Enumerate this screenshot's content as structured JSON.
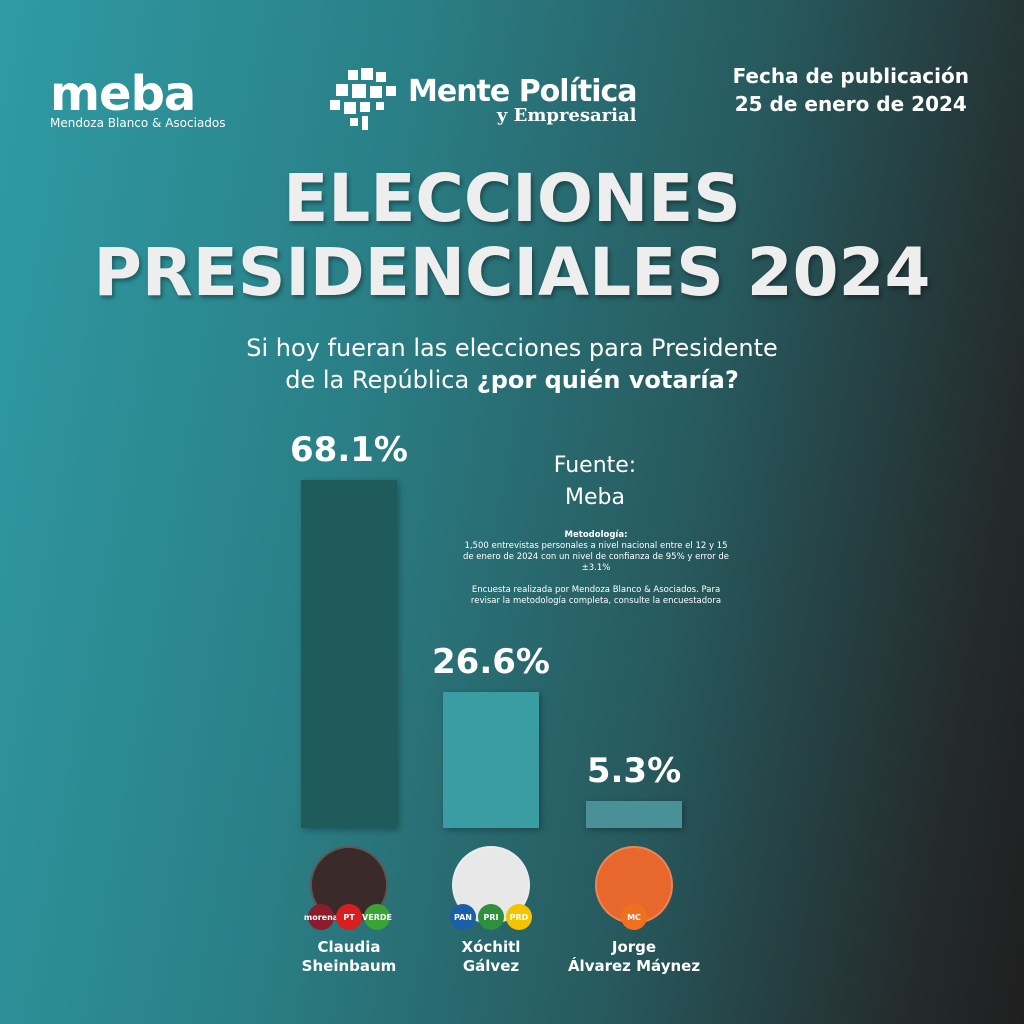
{
  "header": {
    "meba_logo": "meba",
    "meba_subtitle": "Mendoza Blanco & Asociados",
    "mp_logo_line1": "Mente Política",
    "mp_logo_line2": "y Empresarial",
    "fecha_label": "Fecha de publicación",
    "fecha": "25 de enero de 2024"
  },
  "title_line1": "ELECCIONES",
  "title_line2": "PRESIDENCIALES 2024",
  "question_line1": "Si hoy fueran las elecciones para Presidente",
  "question_line2a": "de la República ",
  "question_line2b": "¿por quién votaría?",
  "source_label": "Fuente:",
  "source": "Meba",
  "methodology": {
    "title": "Metodología:",
    "text1": "1,500 entrevistas personales a nivel nacional entre el 12 y 15 de enero de 2024 con un nivel de confianza de 95% y error de ±3.1%",
    "text2": "Encuesta realizada por Mendoza Blanco & Asociados. Para revisar la metodología completa, consulte la encuestadora"
  },
  "chart_data": {
    "type": "bar",
    "title": "Si hoy fueran las elecciones para Presidente de la República ¿por quién votaría?",
    "categories": [
      "Claudia Sheinbaum",
      "Xóchitl Gálvez",
      "Jorge Álvarez Máynez"
    ],
    "values": [
      68.1,
      26.6,
      5.3
    ],
    "labels": [
      "68.1%",
      "26.6%",
      "5.3%"
    ],
    "colors": [
      "#1f5b5b",
      "#3a9da3",
      "#4a9197"
    ],
    "ylim": [
      0,
      68.1
    ]
  },
  "candidates": [
    {
      "name1": "Claudia",
      "name2": "Sheinbaum",
      "parties": [
        "morena",
        "PT",
        "VERDE"
      ],
      "party_colors": [
        "#8b1c2c",
        "#d81e1e",
        "#3aa335"
      ],
      "photo_color": "#3a2a2a"
    },
    {
      "name1": "Xóchitl",
      "name2": "Gálvez",
      "parties": [
        "PAN",
        "PRI",
        "PRD"
      ],
      "party_colors": [
        "#1a5fa8",
        "#2e8f3f",
        "#f2c500"
      ],
      "photo_color": "#e8e8e8"
    },
    {
      "name1": "Jorge",
      "name2": "Álvarez Máynez",
      "parties": [
        "MC"
      ],
      "party_colors": [
        "#f07020"
      ],
      "photo_color": "#e8672c"
    }
  ]
}
